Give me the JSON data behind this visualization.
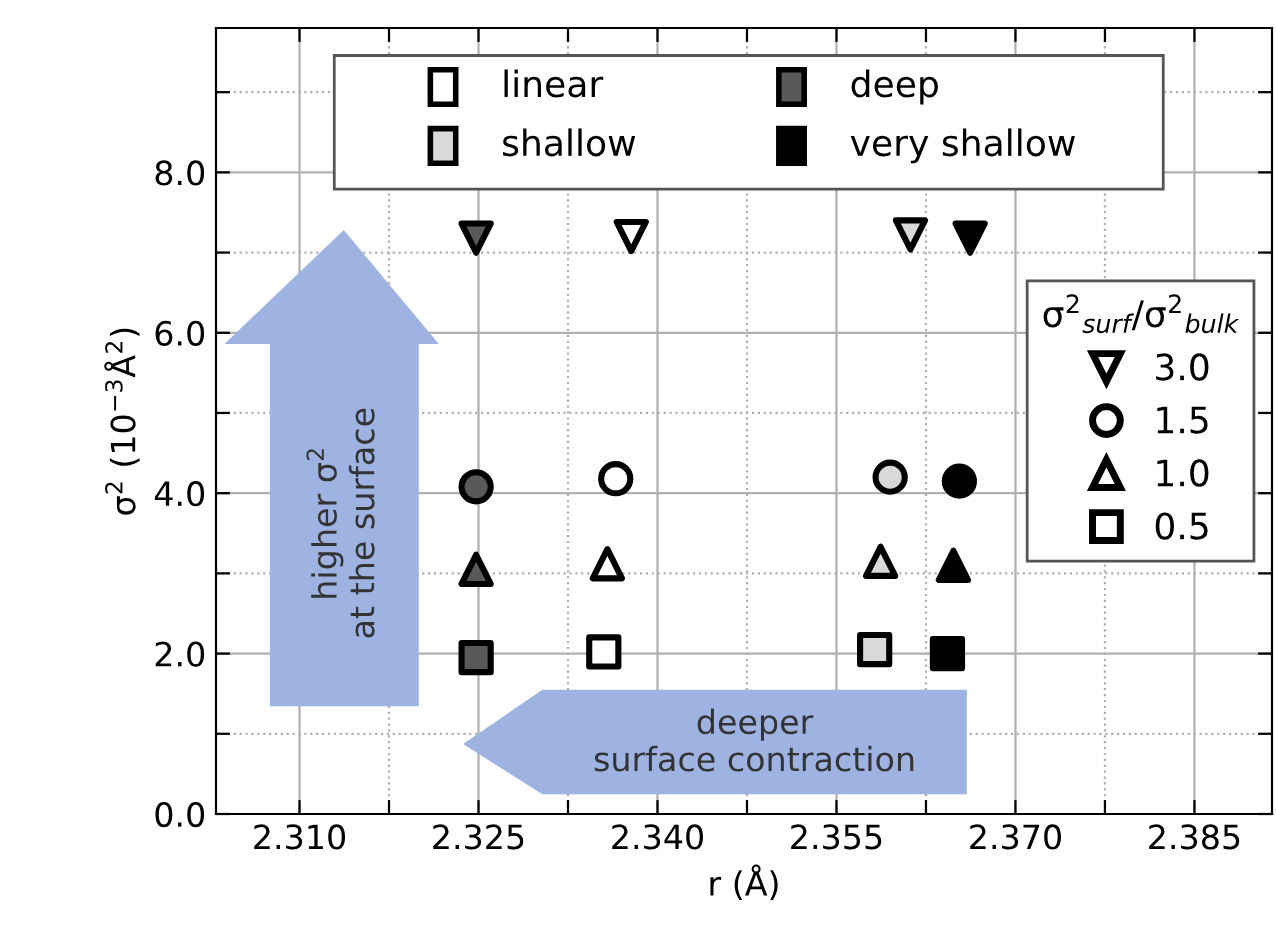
{
  "chart_data": {
    "type": "scatter",
    "xlabel": "r (Å)",
    "ylabel": "σ$^{2}$ (10$^{−3}$Å$^{2}$)",
    "xlim": [
      2.303,
      2.3915
    ],
    "ylim": [
      0,
      9.8
    ],
    "xticks": [
      {
        "value": 2.31,
        "label": "2.310"
      },
      {
        "value": 2.3175,
        "label": null
      },
      {
        "value": 2.325,
        "label": "2.325"
      },
      {
        "value": 2.3325,
        "label": null
      },
      {
        "value": 2.34,
        "label": "2.340"
      },
      {
        "value": 2.3475,
        "label": null
      },
      {
        "value": 2.355,
        "label": "2.355"
      },
      {
        "value": 2.3625,
        "label": null
      },
      {
        "value": 2.37,
        "label": "2.370"
      },
      {
        "value": 2.3775,
        "label": null
      },
      {
        "value": 2.385,
        "label": "2.385"
      }
    ],
    "yticks": [
      {
        "value": 0,
        "label": "0.0"
      },
      {
        "value": 1,
        "label": null
      },
      {
        "value": 2,
        "label": "2.0"
      },
      {
        "value": 3,
        "label": null
      },
      {
        "value": 4,
        "label": "4.0"
      },
      {
        "value": 5,
        "label": null
      },
      {
        "value": 6,
        "label": "6.0"
      },
      {
        "value": 7,
        "label": null
      },
      {
        "value": 8,
        "label": "8.0"
      },
      {
        "value": 9,
        "label": null
      }
    ],
    "grid": true,
    "legend": "right",
    "legend_title": "σ$^{2}$$_{surf}$/σ$^{2}$$_{bulk}$",
    "series": [
      {
        "name": "3.0",
        "color": "#000000",
        "marker": "triangle_down",
        "x": [
          2.3378,
          2.3612,
          2.3248,
          2.3662
        ],
        "values": [
          7.2,
          7.22,
          7.18,
          7.18
        ],
        "colors": [
          "#ffffff",
          "#d9d9d9",
          "#595959",
          "#000000"
        ]
      },
      {
        "name": "1.5",
        "color": "#000000",
        "marker": "circle",
        "x": [
          2.3365,
          2.3595,
          2.3248,
          2.3653
        ],
        "values": [
          4.18,
          4.2,
          4.08,
          4.15
        ],
        "colors": [
          "#ffffff",
          "#d9d9d9",
          "#595959",
          "#000000"
        ]
      },
      {
        "name": "1.0",
        "color": "#000000",
        "marker": "triangle",
        "x": [
          2.3358,
          2.3587,
          2.3248,
          2.3648
        ],
        "values": [
          3.12,
          3.15,
          3.05,
          3.1
        ],
        "colors": [
          "#ffffff",
          "#d9d9d9",
          "#595959",
          "#000000"
        ]
      },
      {
        "name": "0.5",
        "color": "#000000",
        "marker": "square",
        "x": [
          2.3355,
          2.3582,
          2.3248,
          2.3643
        ],
        "values": [
          2.02,
          2.05,
          1.95,
          2.0
        ],
        "colors": [
          "#ffffff",
          "#d9d9d9",
          "#595959",
          "#000000"
        ]
      }
    ],
    "annotations": [
      "higher σ$^{2}$\nat the surface",
      "deeper\nsurface contraction",
      "linear",
      "shallow",
      "deep",
      "very shallow"
    ]
  }
}
